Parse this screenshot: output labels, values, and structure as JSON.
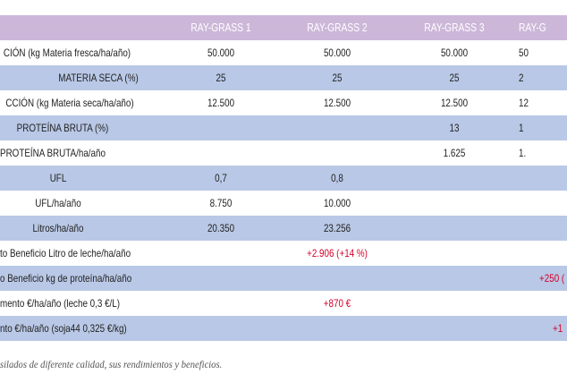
{
  "header": {
    "col1": "RAY-GRASS 1",
    "col2": "RAY-GRASS 2",
    "col3": "RAY-GRASS 3",
    "col4": "RAY-G"
  },
  "rows": [
    {
      "label": "CIÓN (kg Materia fresca/ha/año)",
      "c1": "50.000",
      "c2": "50.000",
      "c3": "50.000",
      "c4": "50"
    },
    {
      "label": "MATERIA SECA (%)",
      "c1": "25",
      "c2": "25",
      "c3": "25",
      "c4": "2"
    },
    {
      "label": "CCIÓN (kg Materia seca/ha/año)",
      "c1": "12.500",
      "c2": "12.500",
      "c3": "12.500",
      "c4": "12"
    },
    {
      "label": "PROTEÍNA BRUTA (%)",
      "c1": "",
      "c2": "",
      "c3": "13",
      "c4": "1"
    },
    {
      "label": "PROTEÍNA BRUTA/ha/año",
      "c1": "",
      "c2": "",
      "c3": "1.625",
      "c4": "1."
    },
    {
      "label": "UFL",
      "c1": "0,7",
      "c2": "0,8",
      "c3": "",
      "c4": ""
    },
    {
      "label": "UFL/ha/año",
      "c1": "8.750",
      "c2": "10.000",
      "c3": "",
      "c4": ""
    },
    {
      "label": "Litros/ha/año",
      "c1": "20.350",
      "c2": "23.256",
      "c3": "",
      "c4": ""
    },
    {
      "label": "to Beneficio Litro de leche/ha/año",
      "c1": "",
      "c2": "+2.906 (+14 %)",
      "c3": "",
      "c4": ""
    },
    {
      "label": "o Beneficio kg de proteína/ha/año",
      "c1": "",
      "c2": "",
      "c3": "",
      "c4": "+250 ("
    },
    {
      "label": "mento €/ha/año (leche 0,3 €/L)",
      "c1": "",
      "c2": "+870 €",
      "c3": "",
      "c4": ""
    },
    {
      "label": "nto €/ha/año (soja44 0,325 €/kg)",
      "c1": "",
      "c2": "",
      "c3": "",
      "c4": "+1"
    }
  ],
  "caption": "silados de diferente calidad, sus rendimientos y beneficios.",
  "colors": {
    "header_bg": "#cdb7d9",
    "blue_row": "#b9c8e6",
    "highlight_red": "#d4002a"
  }
}
